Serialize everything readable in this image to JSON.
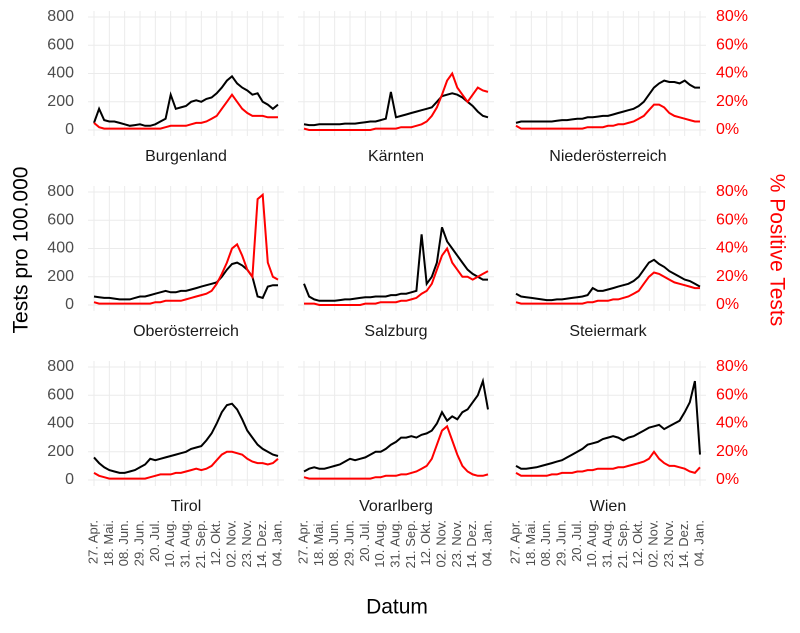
{
  "chart_data": {
    "type": "line",
    "xlabel": "Datum",
    "ylabel": "Tests pro 100.000",
    "y2label": "% Positive Tests",
    "x": [
      "27. Apr.",
      "04. Mai.",
      "11. Mai.",
      "18. Mai.",
      "25. Mai.",
      "01. Jun.",
      "08. Jun.",
      "15. Jun.",
      "22. Jun.",
      "29. Jun.",
      "06. Jul.",
      "13. Jul.",
      "20. Jul.",
      "27. Jul.",
      "03. Aug.",
      "10. Aug.",
      "17. Aug.",
      "24. Aug.",
      "31. Aug.",
      "07. Sep.",
      "14. Sep.",
      "21. Sep.",
      "28. Sep.",
      "05. Okt.",
      "12. Okt.",
      "19. Okt.",
      "26. Okt.",
      "02. Nov.",
      "09. Nov.",
      "16. Nov.",
      "23. Nov.",
      "30. Nov.",
      "07. Dez.",
      "14. Dez.",
      "21. Dez.",
      "28. Dez.",
      "04. Jan."
    ],
    "xticks": [
      "27. Apr.",
      "18. Mai.",
      "08. Jun.",
      "29. Jun.",
      "20. Jul.",
      "10. Aug.",
      "31. Aug.",
      "21. Sep.",
      "12. Okt.",
      "02. Nov.",
      "23. Nov.",
      "14. Dez.",
      "04. Jan."
    ],
    "ylim": [
      0,
      800
    ],
    "yticks": [
      0,
      200,
      400,
      600,
      800
    ],
    "y2lim": [
      0,
      80
    ],
    "y2ticks": [
      {
        "value": 0,
        "label": "0%"
      },
      {
        "value": 20,
        "label": "20%"
      },
      {
        "value": 40,
        "label": "40%"
      },
      {
        "value": 60,
        "label": "60%"
      },
      {
        "value": 80,
        "label": "80%"
      }
    ],
    "y2color": "#ff0000",
    "grid": true,
    "facets": [
      {
        "title": "Burgenland",
        "series": [
          {
            "color": "#000000",
            "values": [
              50,
              150,
              70,
              60,
              60,
              50,
              40,
              30,
              35,
              40,
              30,
              30,
              40,
              60,
              80,
              250,
              150,
              160,
              170,
              200,
              210,
              200,
              220,
              230,
              260,
              300,
              350,
              380,
              330,
              300,
              280,
              250,
              260,
              200,
              180,
              150,
              180
            ]
          },
          {
            "color": "#ff0000",
            "axis": "y2",
            "values": [
              5,
              2,
              1,
              1,
              1,
              1,
              1,
              1,
              1,
              1,
              1,
              1,
              1,
              1,
              2,
              3,
              3,
              3,
              3,
              4,
              5,
              5,
              6,
              8,
              10,
              15,
              20,
              25,
              20,
              15,
              12,
              10,
              10,
              10,
              9,
              9,
              9
            ]
          }
        ]
      },
      {
        "title": "Kärnten",
        "series": [
          {
            "color": "#000000",
            "values": [
              40,
              35,
              35,
              40,
              40,
              40,
              40,
              40,
              45,
              45,
              45,
              50,
              55,
              60,
              60,
              70,
              80,
              270,
              90,
              100,
              110,
              120,
              130,
              140,
              150,
              160,
              200,
              240,
              250,
              260,
              250,
              230,
              200,
              170,
              130,
              100,
              90
            ]
          },
          {
            "color": "#ff0000",
            "axis": "y2",
            "values": [
              1,
              0,
              0,
              0,
              0,
              0,
              0,
              0,
              0,
              0,
              0,
              0,
              0,
              0,
              1,
              1,
              1,
              1,
              1,
              2,
              2,
              2,
              3,
              4,
              6,
              10,
              16,
              25,
              35,
              40,
              30,
              25,
              20,
              25,
              30,
              28,
              27
            ]
          }
        ]
      },
      {
        "title": "Niederösterreich",
        "series": [
          {
            "color": "#000000",
            "values": [
              50,
              60,
              60,
              60,
              60,
              60,
              60,
              60,
              65,
              70,
              70,
              75,
              80,
              80,
              90,
              90,
              95,
              100,
              100,
              110,
              120,
              130,
              140,
              150,
              170,
              200,
              250,
              300,
              330,
              350,
              340,
              340,
              330,
              350,
              320,
              300,
              300
            ]
          },
          {
            "color": "#ff0000",
            "axis": "y2",
            "values": [
              3,
              1,
              1,
              1,
              1,
              1,
              1,
              1,
              1,
              1,
              1,
              1,
              1,
              1,
              2,
              2,
              2,
              2,
              3,
              3,
              4,
              4,
              5,
              6,
              8,
              10,
              14,
              18,
              18,
              16,
              12,
              10,
              9,
              8,
              7,
              6,
              6
            ]
          }
        ]
      },
      {
        "title": "Oberösterreich",
        "series": [
          {
            "color": "#000000",
            "values": [
              60,
              55,
              50,
              50,
              45,
              40,
              40,
              40,
              50,
              60,
              60,
              70,
              80,
              90,
              100,
              90,
              90,
              100,
              100,
              110,
              120,
              130,
              140,
              150,
              160,
              200,
              250,
              290,
              300,
              280,
              250,
              200,
              60,
              50,
              130,
              140,
              140
            ]
          },
          {
            "color": "#ff0000",
            "axis": "y2",
            "values": [
              2,
              1,
              1,
              1,
              1,
              1,
              1,
              1,
              1,
              1,
              1,
              1,
              2,
              2,
              3,
              3,
              3,
              3,
              4,
              5,
              6,
              7,
              8,
              10,
              15,
              22,
              30,
              40,
              43,
              35,
              25,
              20,
              75,
              78,
              30,
              20,
              18
            ]
          }
        ]
      },
      {
        "title": "Salzburg",
        "series": [
          {
            "color": "#000000",
            "values": [
              150,
              60,
              40,
              30,
              30,
              30,
              30,
              35,
              40,
              40,
              45,
              50,
              55,
              55,
              60,
              60,
              60,
              70,
              70,
              80,
              80,
              90,
              100,
              500,
              150,
              200,
              300,
              550,
              450,
              400,
              350,
              300,
              250,
              220,
              200,
              180,
              180
            ]
          },
          {
            "color": "#ff0000",
            "axis": "y2",
            "values": [
              1,
              1,
              1,
              0,
              0,
              0,
              0,
              0,
              0,
              0,
              0,
              0,
              1,
              1,
              1,
              2,
              2,
              2,
              2,
              3,
              3,
              4,
              5,
              8,
              10,
              15,
              25,
              35,
              40,
              30,
              25,
              20,
              20,
              18,
              20,
              22,
              24
            ]
          }
        ]
      },
      {
        "title": "Steiermark",
        "series": [
          {
            "color": "#000000",
            "values": [
              80,
              60,
              55,
              50,
              45,
              40,
              35,
              35,
              40,
              40,
              45,
              50,
              55,
              60,
              70,
              120,
              100,
              100,
              110,
              120,
              130,
              140,
              150,
              170,
              200,
              250,
              300,
              320,
              290,
              270,
              240,
              220,
              200,
              180,
              170,
              150,
              130
            ]
          },
          {
            "color": "#ff0000",
            "axis": "y2",
            "values": [
              2,
              1,
              1,
              1,
              1,
              1,
              1,
              1,
              1,
              1,
              1,
              1,
              1,
              1,
              2,
              2,
              3,
              3,
              3,
              4,
              4,
              5,
              6,
              8,
              10,
              15,
              20,
              23,
              22,
              20,
              18,
              16,
              15,
              14,
              13,
              12,
              12
            ]
          }
        ]
      },
      {
        "title": "Tirol",
        "series": [
          {
            "color": "#000000",
            "values": [
              160,
              120,
              90,
              70,
              60,
              50,
              50,
              60,
              70,
              90,
              110,
              150,
              140,
              150,
              160,
              170,
              180,
              190,
              200,
              220,
              230,
              240,
              280,
              330,
              400,
              480,
              530,
              540,
              500,
              430,
              350,
              300,
              250,
              220,
              200,
              180,
              170
            ]
          },
          {
            "color": "#ff0000",
            "axis": "y2",
            "values": [
              5,
              3,
              2,
              1,
              1,
              1,
              1,
              1,
              1,
              1,
              1,
              2,
              3,
              4,
              4,
              4,
              5,
              5,
              6,
              7,
              8,
              7,
              8,
              10,
              14,
              18,
              20,
              20,
              19,
              18,
              15,
              13,
              12,
              12,
              11,
              12,
              15
            ]
          }
        ]
      },
      {
        "title": "Vorarlberg",
        "series": [
          {
            "color": "#000000",
            "values": [
              60,
              80,
              90,
              80,
              80,
              90,
              100,
              110,
              130,
              150,
              140,
              150,
              160,
              180,
              200,
              200,
              220,
              250,
              270,
              300,
              300,
              310,
              300,
              320,
              330,
              350,
              400,
              480,
              420,
              450,
              430,
              480,
              500,
              550,
              600,
              700,
              500
            ]
          },
          {
            "color": "#ff0000",
            "axis": "y2",
            "values": [
              2,
              1,
              1,
              1,
              1,
              1,
              1,
              1,
              1,
              1,
              1,
              1,
              1,
              1,
              2,
              2,
              3,
              3,
              3,
              4,
              4,
              5,
              6,
              8,
              10,
              15,
              25,
              35,
              38,
              28,
              18,
              10,
              6,
              4,
              3,
              3,
              4
            ]
          }
        ]
      },
      {
        "title": "Wien",
        "series": [
          {
            "color": "#000000",
            "values": [
              100,
              80,
              80,
              85,
              90,
              100,
              110,
              120,
              130,
              140,
              160,
              180,
              200,
              220,
              250,
              260,
              270,
              290,
              300,
              310,
              300,
              280,
              300,
              310,
              330,
              350,
              370,
              380,
              390,
              360,
              380,
              400,
              420,
              480,
              550,
              700,
              180
            ]
          },
          {
            "color": "#ff0000",
            "axis": "y2",
            "values": [
              5,
              3,
              3,
              3,
              3,
              3,
              3,
              4,
              4,
              5,
              5,
              5,
              6,
              6,
              7,
              7,
              8,
              8,
              8,
              8,
              9,
              9,
              10,
              11,
              12,
              13,
              15,
              20,
              15,
              12,
              10,
              10,
              9,
              8,
              6,
              5,
              9
            ]
          }
        ]
      }
    ]
  }
}
